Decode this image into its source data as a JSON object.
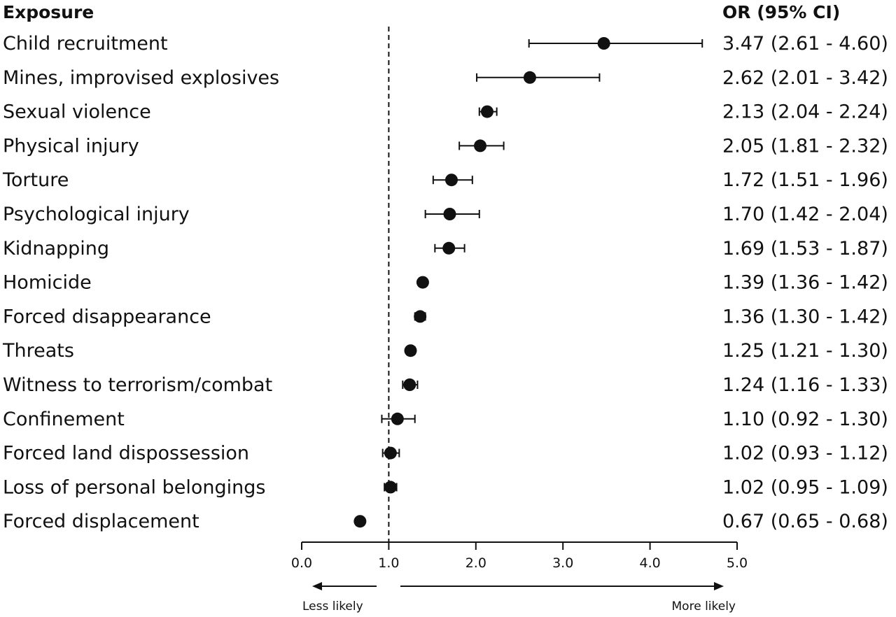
{
  "header": {
    "exposure_label": "Exposure",
    "or_label": "OR (95% CI)"
  },
  "direction": {
    "less": "Less likely",
    "more": "More likely"
  },
  "colors": {
    "ink": "#111111",
    "background": "#ffffff"
  },
  "chart_data": {
    "type": "scatter",
    "subtype": "forest-plot",
    "reference_line": 1.0,
    "xlim": [
      0,
      5
    ],
    "xticks": [
      "0.0",
      "1.0",
      "2.0",
      "3.0",
      "4.0",
      "5.0"
    ],
    "rows": [
      {
        "label": "Child recruitment",
        "or": 3.47,
        "lo": 2.61,
        "hi": 4.6,
        "text": "3.47 (2.61 - 4.60)"
      },
      {
        "label": "Mines, improvised explosives",
        "or": 2.62,
        "lo": 2.01,
        "hi": 3.42,
        "text": "2.62 (2.01 - 3.42)"
      },
      {
        "label": "Sexual violence",
        "or": 2.13,
        "lo": 2.04,
        "hi": 2.24,
        "text": "2.13 (2.04 - 2.24)"
      },
      {
        "label": "Physical injury",
        "or": 2.05,
        "lo": 1.81,
        "hi": 2.32,
        "text": "2.05 (1.81 - 2.32)"
      },
      {
        "label": "Torture",
        "or": 1.72,
        "lo": 1.51,
        "hi": 1.96,
        "text": "1.72 (1.51 - 1.96)"
      },
      {
        "label": "Psychological injury",
        "or": 1.7,
        "lo": 1.42,
        "hi": 2.04,
        "text": "1.70 (1.42 - 2.04)"
      },
      {
        "label": "Kidnapping",
        "or": 1.69,
        "lo": 1.53,
        "hi": 1.87,
        "text": "1.69 (1.53 - 1.87)"
      },
      {
        "label": "Homicide",
        "or": 1.39,
        "lo": 1.36,
        "hi": 1.42,
        "text": "1.39 (1.36 - 1.42)"
      },
      {
        "label": "Forced disappearance",
        "or": 1.36,
        "lo": 1.3,
        "hi": 1.42,
        "text": "1.36 (1.30 - 1.42)"
      },
      {
        "label": "Threats",
        "or": 1.25,
        "lo": 1.21,
        "hi": 1.3,
        "text": "1.25 (1.21 - 1.30)"
      },
      {
        "label": "Witness to terrorism/combat",
        "or": 1.24,
        "lo": 1.16,
        "hi": 1.33,
        "text": "1.24 (1.16 - 1.33)"
      },
      {
        "label": "Confinement",
        "or": 1.1,
        "lo": 0.92,
        "hi": 1.3,
        "text": "1.10 (0.92 - 1.30)"
      },
      {
        "label": "Forced land dispossession",
        "or": 1.02,
        "lo": 0.93,
        "hi": 1.12,
        "text": "1.02 (0.93 - 1.12)"
      },
      {
        "label": "Loss of personal belongings",
        "or": 1.02,
        "lo": 0.95,
        "hi": 1.09,
        "text": "1.02 (0.95 - 1.09)"
      },
      {
        "label": "Forced displacement",
        "or": 0.67,
        "lo": 0.65,
        "hi": 0.68,
        "text": "0.67 (0.65 - 0.68)"
      }
    ]
  }
}
